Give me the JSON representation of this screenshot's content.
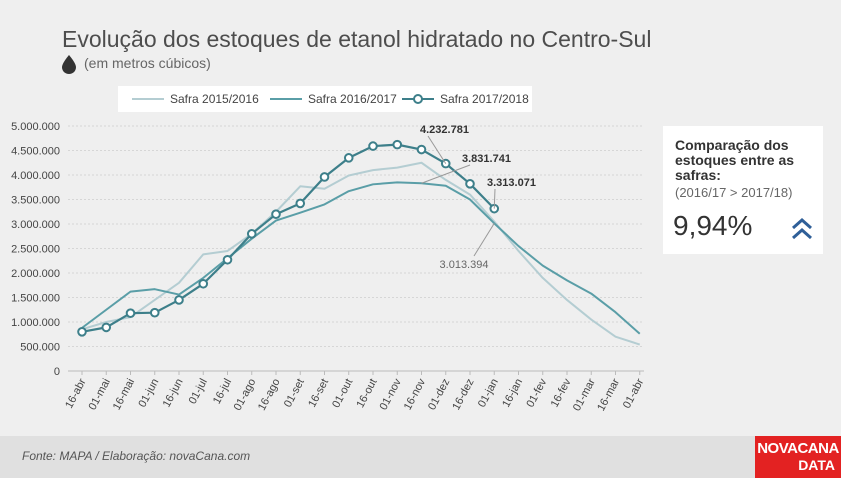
{
  "header": {
    "title": "Evolução dos estoques de etanol hidratado no Centro-Sul",
    "subtitle": "(em metros cúbicos)",
    "icon": "drop-icon"
  },
  "panel": {
    "title": "Comparação dos estoques entre as safras:",
    "comparison": "(2016/17 > 2017/18)",
    "value": "9,94%",
    "icon": "double-chevron-up-icon",
    "accent": "#2f5f98"
  },
  "footer": {
    "source": "Fonte: MAPA  / Elaboração: novaCana.com",
    "logo_line1": "NOVACANA",
    "logo_line2": "DATA"
  },
  "chart_data": {
    "type": "line",
    "title": "Evolução dos estoques de etanol hidratado no Centro-Sul",
    "subtitle": "(em metros cúbicos)",
    "categories": [
      "16-abr",
      "01-mai",
      "16-mai",
      "01-jun",
      "16-jun",
      "01-jul",
      "16-jul",
      "01-ago",
      "16-ago",
      "01-set",
      "16-set",
      "01-out",
      "16-out",
      "01-nov",
      "16-nov",
      "01-dez",
      "16-dez",
      "01-jan",
      "16-jan",
      "01-fev",
      "16-fev",
      "01-mar",
      "16-mar",
      "01-abr"
    ],
    "y_tick_labels": [
      "0",
      "500.000",
      "1.000.000",
      "1.500.000",
      "2.000.000",
      "2.500.000",
      "3.000.000",
      "3.500.000",
      "4.000.000",
      "4.500.000",
      "5.000.000"
    ],
    "ylim": [
      0,
      5000000
    ],
    "grid": true,
    "legend_position": "top",
    "series": [
      {
        "name": "Safra 2015/2016",
        "color": "#b4cdd2",
        "markers": false,
        "values": [
          850000,
          1000000,
          1100000,
          1450000,
          1800000,
          2380000,
          2450000,
          2800000,
          3250000,
          3770000,
          3720000,
          3990000,
          4100000,
          4150000,
          4250000,
          3900000,
          3600000,
          3050000,
          2450000,
          1900000,
          1450000,
          1050000,
          700000,
          540000
        ]
      },
      {
        "name": "Safra 2016/2017",
        "color": "#5a9ea7",
        "markers": false,
        "values": [
          880000,
          1250000,
          1620000,
          1670000,
          1560000,
          1900000,
          2300000,
          2700000,
          3070000,
          3230000,
          3400000,
          3670000,
          3810000,
          3850000,
          3831741,
          3780000,
          3500000,
          3013394,
          2550000,
          2150000,
          1850000,
          1580000,
          1200000,
          760000
        ]
      },
      {
        "name": "Safra 2017/2018",
        "color": "#3d7f8a",
        "markers": true,
        "values": [
          800000,
          890000,
          1180000,
          1190000,
          1450000,
          1780000,
          2270000,
          2800000,
          3200000,
          3420000,
          3960000,
          4350000,
          4590000,
          4620000,
          4520000,
          4232781,
          3820000,
          3313071,
          null,
          null,
          null,
          null,
          null,
          null
        ]
      }
    ],
    "annotations": [
      {
        "label": "4.232.781",
        "series": "Safra 2017/2018",
        "category": "01-dez",
        "value": 4232781
      },
      {
        "label": "3.831.741",
        "series": "Safra 2016/2017",
        "category": "16-nov",
        "value": 3831741
      },
      {
        "label": "3.313.071",
        "series": "Safra 2017/2018",
        "category": "01-jan",
        "value": 3313071
      },
      {
        "label": "3.013.394",
        "series": "Safra 2016/2017",
        "category": "01-jan",
        "value": 3013394
      }
    ]
  }
}
